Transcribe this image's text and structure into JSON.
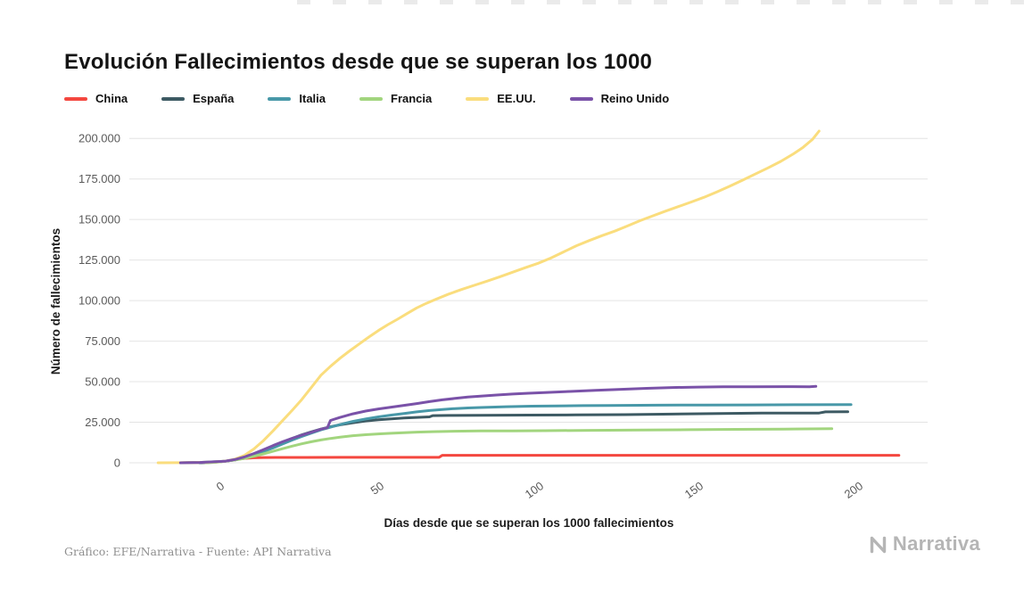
{
  "footer": {
    "credit": "Gráfico: EFE/Narrativa - Fuente: API Narrativa",
    "brand": "Narrativa"
  },
  "chart_data": {
    "type": "line",
    "title": "Evolución Fallecimientos desde que se superan los 1000",
    "xlabel": "Días desde que se superan los 1000 fallecimientos",
    "ylabel": "Número de fallecimientos",
    "xlim": [
      -30,
      220
    ],
    "ylim": [
      0,
      210000
    ],
    "x_ticks": [
      0,
      50,
      100,
      150,
      200
    ],
    "y_ticks": [
      0,
      25000,
      50000,
      75000,
      100000,
      125000,
      150000,
      175000,
      200000
    ],
    "y_tick_labels": [
      "0",
      "25.000",
      "50.000",
      "75.000",
      "100.000",
      "125.000",
      "150.000",
      "175.000",
      "200.000"
    ],
    "grid": "horizontal",
    "legend_position": "top-left",
    "series": [
      {
        "name": "China",
        "slug": "china",
        "color": "#f4473f",
        "points": [
          [
            -14,
            0
          ],
          [
            -10,
            100
          ],
          [
            -5,
            300
          ],
          [
            0,
            1000
          ],
          [
            2,
            1600
          ],
          [
            4,
            2200
          ],
          [
            6,
            2700
          ],
          [
            9,
            3100
          ],
          [
            12,
            3250
          ],
          [
            16,
            3300
          ],
          [
            25,
            3320
          ],
          [
            40,
            3330
          ],
          [
            55,
            3340
          ],
          [
            67,
            3350
          ],
          [
            68,
            4630
          ],
          [
            80,
            4634
          ],
          [
            110,
            4634
          ],
          [
            150,
            4634
          ],
          [
            180,
            4634
          ],
          [
            211,
            4634
          ]
        ]
      },
      {
        "name": "España",
        "slug": "espana",
        "color": "#3d5a63",
        "points": [
          [
            -8,
            0
          ],
          [
            -4,
            300
          ],
          [
            0,
            1000
          ],
          [
            3,
            1700
          ],
          [
            6,
            3000
          ],
          [
            9,
            5000
          ],
          [
            12,
            7300
          ],
          [
            15,
            9800
          ],
          [
            18,
            12600
          ],
          [
            21,
            15000
          ],
          [
            24,
            17200
          ],
          [
            27,
            19100
          ],
          [
            30,
            20800
          ],
          [
            33,
            22200
          ],
          [
            36,
            23400
          ],
          [
            40,
            24700
          ],
          [
            44,
            25800
          ],
          [
            48,
            26500
          ],
          [
            52,
            27100
          ],
          [
            56,
            27600
          ],
          [
            60,
            28000
          ],
          [
            64,
            28300
          ],
          [
            65,
            29100
          ],
          [
            70,
            29200
          ],
          [
            80,
            29300
          ],
          [
            95,
            29400
          ],
          [
            110,
            29500
          ],
          [
            125,
            29700
          ],
          [
            140,
            30000
          ],
          [
            155,
            30400
          ],
          [
            168,
            30700
          ],
          [
            186,
            30700
          ],
          [
            188,
            31400
          ],
          [
            195,
            31450
          ]
        ]
      },
      {
        "name": "Italia",
        "slug": "italia",
        "color": "#4898a8",
        "points": [
          [
            -14,
            0
          ],
          [
            -8,
            200
          ],
          [
            0,
            1000
          ],
          [
            3,
            1800
          ],
          [
            6,
            3000
          ],
          [
            9,
            4800
          ],
          [
            12,
            7000
          ],
          [
            15,
            9100
          ],
          [
            18,
            11600
          ],
          [
            21,
            14000
          ],
          [
            24,
            16200
          ],
          [
            27,
            18300
          ],
          [
            30,
            20300
          ],
          [
            33,
            22000
          ],
          [
            36,
            23600
          ],
          [
            40,
            25500
          ],
          [
            44,
            27000
          ],
          [
            48,
            28300
          ],
          [
            52,
            29400
          ],
          [
            56,
            30400
          ],
          [
            60,
            31400
          ],
          [
            64,
            32200
          ],
          [
            68,
            32900
          ],
          [
            72,
            33400
          ],
          [
            76,
            33800
          ],
          [
            80,
            34100
          ],
          [
            88,
            34600
          ],
          [
            96,
            34900
          ],
          [
            104,
            35100
          ],
          [
            112,
            35250
          ],
          [
            120,
            35350
          ],
          [
            135,
            35500
          ],
          [
            150,
            35600
          ],
          [
            165,
            35700
          ],
          [
            180,
            35800
          ],
          [
            196,
            35900
          ]
        ]
      },
      {
        "name": "Francia",
        "slug": "francia",
        "color": "#a2d57e",
        "points": [
          [
            -6,
            0
          ],
          [
            -3,
            300
          ],
          [
            0,
            1000
          ],
          [
            3,
            1700
          ],
          [
            6,
            2700
          ],
          [
            9,
            4000
          ],
          [
            12,
            5500
          ],
          [
            15,
            7100
          ],
          [
            18,
            8700
          ],
          [
            21,
            10300
          ],
          [
            24,
            11700
          ],
          [
            27,
            13000
          ],
          [
            30,
            14100
          ],
          [
            33,
            15000
          ],
          [
            36,
            15800
          ],
          [
            40,
            16700
          ],
          [
            44,
            17300
          ],
          [
            48,
            17800
          ],
          [
            52,
            18200
          ],
          [
            56,
            18600
          ],
          [
            60,
            18900
          ],
          [
            65,
            19200
          ],
          [
            70,
            19400
          ],
          [
            80,
            19600
          ],
          [
            90,
            19700
          ],
          [
            100,
            19800
          ],
          [
            115,
            20000
          ],
          [
            130,
            20200
          ],
          [
            145,
            20400
          ],
          [
            160,
            20600
          ],
          [
            175,
            20800
          ],
          [
            190,
            21000
          ]
        ]
      },
      {
        "name": "EE.UU.",
        "slug": "eeuu",
        "color": "#fadd7d",
        "points": [
          [
            -21,
            0
          ],
          [
            -15,
            50
          ],
          [
            -10,
            150
          ],
          [
            -5,
            400
          ],
          [
            0,
            1000
          ],
          [
            3,
            2200
          ],
          [
            6,
            4500
          ],
          [
            9,
            8500
          ],
          [
            12,
            13700
          ],
          [
            15,
            19700
          ],
          [
            18,
            26000
          ],
          [
            21,
            32400
          ],
          [
            24,
            39000
          ],
          [
            27,
            46500
          ],
          [
            30,
            54000
          ],
          [
            33,
            59500
          ],
          [
            36,
            64500
          ],
          [
            39,
            69000
          ],
          [
            42,
            73300
          ],
          [
            45,
            77500
          ],
          [
            48,
            81500
          ],
          [
            51,
            85200
          ],
          [
            54,
            88500
          ],
          [
            57,
            92000
          ],
          [
            60,
            95500
          ],
          [
            63,
            98300
          ],
          [
            66,
            100800
          ],
          [
            70,
            104000
          ],
          [
            74,
            106800
          ],
          [
            78,
            109400
          ],
          [
            82,
            112000
          ],
          [
            86,
            114700
          ],
          [
            90,
            117500
          ],
          [
            94,
            120300
          ],
          [
            98,
            123000
          ],
          [
            102,
            126200
          ],
          [
            106,
            130000
          ],
          [
            110,
            133800
          ],
          [
            114,
            137000
          ],
          [
            118,
            140000
          ],
          [
            122,
            142800
          ],
          [
            126,
            146000
          ],
          [
            130,
            149300
          ],
          [
            134,
            152300
          ],
          [
            138,
            155200
          ],
          [
            142,
            158000
          ],
          [
            146,
            160800
          ],
          [
            150,
            163700
          ],
          [
            154,
            167000
          ],
          [
            158,
            170500
          ],
          [
            162,
            174200
          ],
          [
            166,
            178000
          ],
          [
            170,
            181800
          ],
          [
            174,
            185800
          ],
          [
            178,
            190500
          ],
          [
            181,
            194500
          ],
          [
            184,
            199500
          ],
          [
            186,
            204500
          ]
        ]
      },
      {
        "name": "Reino Unido",
        "slug": "reino-unido",
        "color": "#7a52a8",
        "points": [
          [
            -14,
            0
          ],
          [
            -8,
            200
          ],
          [
            0,
            1000
          ],
          [
            3,
            2000
          ],
          [
            6,
            3600
          ],
          [
            9,
            5700
          ],
          [
            12,
            8100
          ],
          [
            15,
            10600
          ],
          [
            18,
            13000
          ],
          [
            21,
            15100
          ],
          [
            24,
            17000
          ],
          [
            27,
            18800
          ],
          [
            30,
            20700
          ],
          [
            32,
            21600
          ],
          [
            33,
            26100
          ],
          [
            36,
            28000
          ],
          [
            40,
            30200
          ],
          [
            44,
            31900
          ],
          [
            48,
            33200
          ],
          [
            52,
            34300
          ],
          [
            56,
            35400
          ],
          [
            60,
            36500
          ],
          [
            64,
            37700
          ],
          [
            68,
            38800
          ],
          [
            72,
            39700
          ],
          [
            76,
            40500
          ],
          [
            80,
            41100
          ],
          [
            85,
            41800
          ],
          [
            90,
            42400
          ],
          [
            95,
            42900
          ],
          [
            100,
            43300
          ],
          [
            108,
            44000
          ],
          [
            116,
            44700
          ],
          [
            124,
            45300
          ],
          [
            132,
            45900
          ],
          [
            140,
            46400
          ],
          [
            148,
            46700
          ],
          [
            156,
            46850
          ],
          [
            165,
            46900
          ],
          [
            175,
            46950
          ],
          [
            183,
            46900
          ],
          [
            185,
            47100
          ]
        ]
      }
    ]
  }
}
